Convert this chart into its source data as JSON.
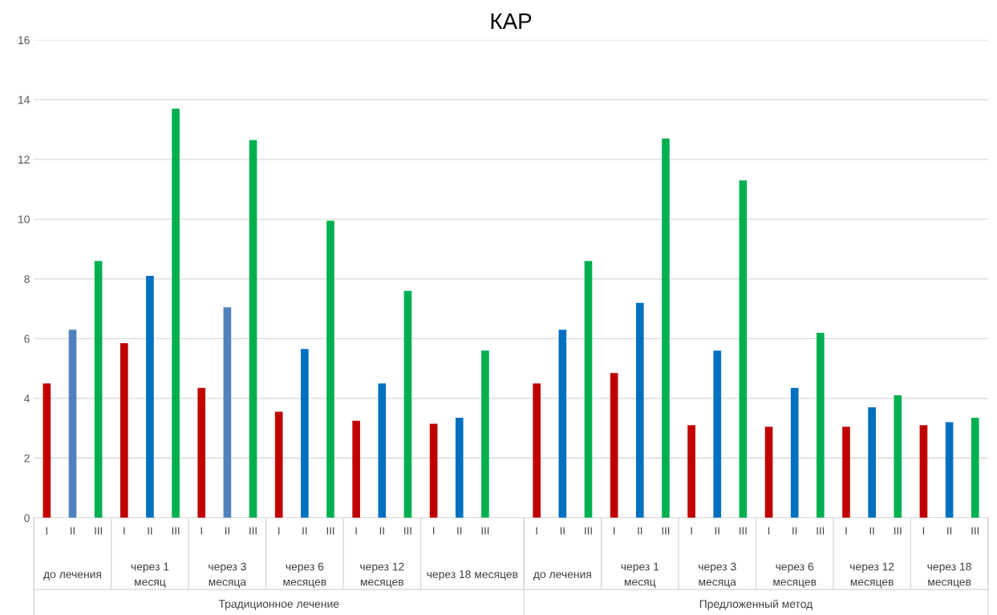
{
  "chart_data": {
    "type": "bar",
    "title": "КАР",
    "categories": [
      "I",
      "II",
      "III",
      "I",
      "II",
      "III",
      "I",
      "II",
      "III",
      "I",
      "II",
      "III",
      "I",
      "II",
      "III",
      "I",
      "II",
      "III",
      null,
      "I",
      "II",
      "III",
      "I",
      "II",
      "III",
      "I",
      "II",
      "III",
      "I",
      "II",
      "III",
      "I",
      "II",
      "III",
      "I",
      "II",
      "III"
    ],
    "values": [
      4.5,
      6.3,
      8.6,
      5.85,
      8.1,
      13.7,
      4.35,
      7.05,
      12.65,
      3.55,
      5.65,
      9.95,
      3.25,
      4.5,
      7.6,
      3.15,
      3.35,
      5.6,
      null,
      4.5,
      6.3,
      8.6,
      4.85,
      7.2,
      12.7,
      3.1,
      5.6,
      11.3,
      3.05,
      4.35,
      6.2,
      3.05,
      3.7,
      4.1,
      3.1,
      3.2,
      3.35
    ],
    "colors": [
      "#c00000",
      "#4f81bd",
      "#00b050",
      "#c00000",
      "#0070c0",
      "#00b050",
      "#c00000",
      "#4f81bd",
      "#00b050",
      "#c00000",
      "#0070c0",
      "#00b050",
      "#c00000",
      "#0070c0",
      "#00b050",
      "#c00000",
      "#0070c0",
      "#00b050",
      null,
      "#c00000",
      "#0070c0",
      "#00b050",
      "#c00000",
      "#0070c0",
      "#00b050",
      "#c00000",
      "#0070c0",
      "#00b050",
      "#c00000",
      "#0070c0",
      "#00b050",
      "#c00000",
      "#0070c0",
      "#00b050",
      "#c00000",
      "#0070c0",
      "#00b050"
    ],
    "ylim": [
      0,
      16
    ],
    "yticks": [
      0,
      2,
      4,
      6,
      8,
      10,
      12,
      14,
      16
    ],
    "grid": "y",
    "annotations": [
      "до лечения",
      "через 1\nмесяц",
      "через 3\nмесяца",
      "через 6\nмесяцев",
      "через 12\nмесяцев",
      "через 18 месяцев",
      "до лечения",
      "через 1\nмесяц",
      "через 3\nмесяца",
      "через 6\nмесяцев",
      "через 12\nмесяцев",
      "через 18\nмесяцев",
      "Традиционное лечение",
      "Предложенный метод"
    ]
  }
}
